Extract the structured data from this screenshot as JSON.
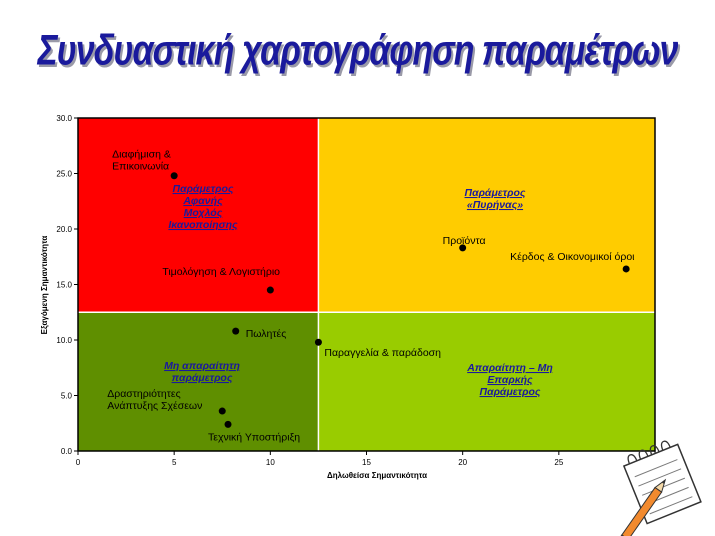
{
  "slide": {
    "title": "Συνδυαστική χαρτογράφηση παραμέτρων"
  },
  "colors": {
    "title": "#1a1a9c",
    "q_top_left": "#ff0000",
    "q_top_right": "#ffcc00",
    "q_bottom_left": "#5f8f00",
    "q_bottom_right": "#99cc00",
    "quadrant_label": "#1a1a9c",
    "point": "#000000"
  },
  "chart_data": {
    "type": "scatter",
    "title": "",
    "xlabel": "Δηλωθείσα Σημαντικότητα",
    "ylabel": "Εξαγόμενη Σημαντικότητα",
    "xlim": [
      0,
      30
    ],
    "ylim": [
      0,
      30
    ],
    "x_ticks": [
      "0",
      "5",
      "10",
      "15",
      "20",
      "25",
      "30"
    ],
    "y_ticks": [
      "0.0",
      "5.0",
      "10.0",
      "15.0",
      "20.0",
      "25.0",
      "30.0"
    ],
    "grid": false,
    "quadrant_split": {
      "x": 12.5,
      "y": 12.5
    },
    "quadrants": [
      {
        "name": "top-left",
        "color": "#ff0000",
        "label": [
          "Παράμετρος",
          "Αφανής",
          "Μοχλός",
          "Ικανοποίησης"
        ]
      },
      {
        "name": "top-right",
        "color": "#ffcc00",
        "label": [
          "Παράμετρος",
          "«Πυρήνας»"
        ]
      },
      {
        "name": "bottom-left",
        "color": "#5f8f00",
        "label": [
          "Μη απαραίτητη",
          "παράμετρος"
        ]
      },
      {
        "name": "bottom-right",
        "color": "#99cc00",
        "label": [
          "Απαραίτητη – Μη",
          "Επαρκής",
          "Παράμετρος"
        ]
      }
    ],
    "points": [
      {
        "label": [
          "Διαφήμιση &",
          "Επικοινωνία"
        ],
        "x": 5.0,
        "y": 24.8
      },
      {
        "label": [
          "Τιμολόγηση & Λογιστήριο"
        ],
        "x": 10.0,
        "y": 14.5
      },
      {
        "label": [
          "Προϊόντα"
        ],
        "x": 20.0,
        "y": 18.3
      },
      {
        "label": [
          "Κέρδος & Οικονομικοί όροι"
        ],
        "x": 28.5,
        "y": 16.4
      },
      {
        "label": [
          "Πωλητές"
        ],
        "x": 8.2,
        "y": 10.8
      },
      {
        "label": [
          "Παραγγελία & παράδοση"
        ],
        "x": 12.5,
        "y": 9.8
      },
      {
        "label": [
          "Δραστηριότητες",
          "Ανάπτυξης Σχέσεων"
        ],
        "x": 7.5,
        "y": 3.6
      },
      {
        "label": [
          "Τεχνική Υποστήριξη"
        ],
        "x": 7.8,
        "y": 2.4
      }
    ]
  }
}
